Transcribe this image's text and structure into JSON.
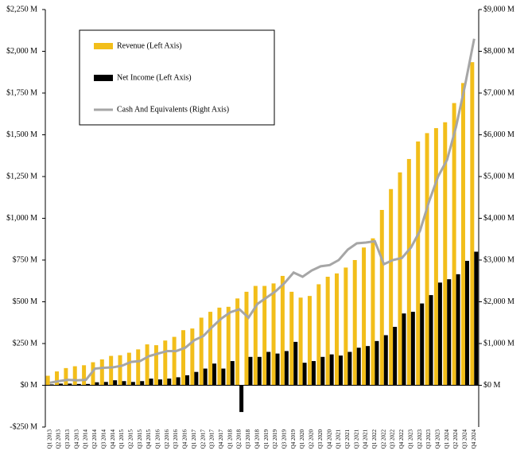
{
  "chart_data": {
    "type": "bar",
    "legend_position": "top-left",
    "categories": [
      "Q1 2013",
      "Q2 2013",
      "Q3 2013",
      "Q4 2013",
      "Q1 2014",
      "Q2 2014",
      "Q3 2014",
      "Q4 2014",
      "Q1 2015",
      "Q2 2015",
      "Q3 2015",
      "Q4 2015",
      "Q1 2016",
      "Q2 2016",
      "Q3 2016",
      "Q4 2016",
      "Q1 2017",
      "Q2 2017",
      "Q3 2017",
      "Q4 2017",
      "Q1 2018",
      "Q2 2018",
      "Q3 2018",
      "Q4 2018",
      "Q1 2019",
      "Q2 2019",
      "Q3 2019",
      "Q4 2019",
      "Q1 2020",
      "Q2 2020",
      "Q3 2020",
      "Q4 2020",
      "Q1 2021",
      "Q2 2021",
      "Q3 2021",
      "Q4 2021",
      "Q1 2022",
      "Q2 2022",
      "Q3 2022",
      "Q4 2022",
      "Q1 2023",
      "Q2 2023",
      "Q3 2023",
      "Q4 2023",
      "Q1 2024",
      "Q2 2024",
      "Q3 2024",
      "Q4 2024"
    ],
    "series": [
      {
        "name": "Revenue (Left Axis)",
        "type": "bar",
        "color": "#f2be1a",
        "values": [
          57,
          83,
          103,
          114,
          120,
          138,
          155,
          176,
          180,
          195,
          215,
          245,
          240,
          268,
          290,
          330,
          340,
          405,
          440,
          465,
          470,
          520,
          560,
          595,
          595,
          610,
          655,
          560,
          525,
          535,
          605,
          650,
          670,
          705,
          750,
          825,
          880,
          1050,
          1175,
          1275,
          1355,
          1460,
          1510,
          1540,
          1575,
          1690,
          1810,
          1935
        ]
      },
      {
        "name": "Net Income (Left Axis)",
        "type": "bar",
        "color": "#000000",
        "values": [
          5,
          10,
          10,
          8,
          8,
          18,
          20,
          30,
          25,
          20,
          25,
          40,
          35,
          40,
          48,
          60,
          80,
          100,
          130,
          100,
          145,
          -160,
          170,
          170,
          200,
          190,
          205,
          260,
          135,
          145,
          170,
          185,
          178,
          200,
          225,
          235,
          265,
          300,
          350,
          430,
          440,
          490,
          540,
          615,
          635,
          665,
          745,
          800
        ]
      },
      {
        "name": "Cash And Equivalents (Right Axis)",
        "type": "line",
        "axis": "y2",
        "color": "#a6a6a6",
        "values": [
          60,
          100,
          130,
          120,
          130,
          400,
          420,
          430,
          470,
          560,
          580,
          700,
          760,
          820,
          820,
          900,
          1080,
          1180,
          1400,
          1600,
          1750,
          1820,
          1620,
          1950,
          2100,
          2250,
          2450,
          2700,
          2600,
          2750,
          2850,
          2880,
          3000,
          3250,
          3400,
          3420,
          3450,
          2900,
          3000,
          3050,
          3300,
          3700,
          4400,
          5000,
          5400,
          6200,
          7200,
          8300
        ]
      }
    ],
    "ylim": [
      -250,
      2250
    ],
    "yticks": [
      {
        "value": -250,
        "label": "-$250 M"
      },
      {
        "value": 0,
        "label": "$0 M"
      },
      {
        "value": 250,
        "label": "$250 M"
      },
      {
        "value": 500,
        "label": "$500 M"
      },
      {
        "value": 750,
        "label": "$750 M"
      },
      {
        "value": 1000,
        "label": "$1,000 M"
      },
      {
        "value": 1250,
        "label": "$1,250 M"
      },
      {
        "value": 1500,
        "label": "$1,500 M"
      },
      {
        "value": 1750,
        "label": "$1,750 M"
      },
      {
        "value": 2000,
        "label": "$2,000 M"
      },
      {
        "value": 2250,
        "label": "$2,250 M"
      }
    ],
    "y2lim": [
      -1000,
      9000
    ],
    "y2ticks": [
      {
        "value": 0,
        "label": "$0 M"
      },
      {
        "value": 1000,
        "label": "$1,000 M"
      },
      {
        "value": 2000,
        "label": "$2,000 M"
      },
      {
        "value": 3000,
        "label": "$3,000 M"
      },
      {
        "value": 4000,
        "label": "$4,000 M"
      },
      {
        "value": 5000,
        "label": "$5,000 M"
      },
      {
        "value": 6000,
        "label": "$6,000 M"
      },
      {
        "value": 7000,
        "label": "$7,000 M"
      },
      {
        "value": 8000,
        "label": "$8,000 M"
      },
      {
        "value": 9000,
        "label": "$9,000 M"
      }
    ]
  }
}
